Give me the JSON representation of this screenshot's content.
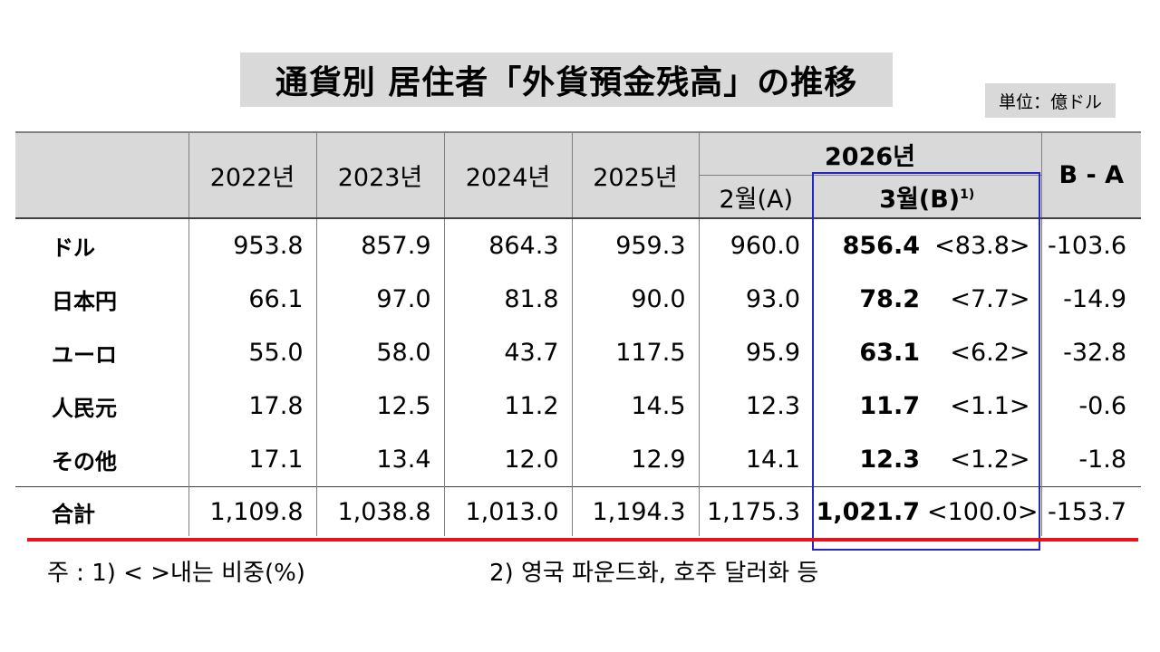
{
  "title": "通貨別 居住者「外貨預金残高」の推移",
  "unit": "単位：億ドル",
  "header": {
    "years": [
      "2022년",
      "2023년",
      "2024년",
      "2025년"
    ],
    "year_2026": "2026년",
    "feb": "2월(A)",
    "mar": "3월(B)",
    "mar_sup": "1)",
    "diff": "B - A"
  },
  "rows": [
    {
      "label": "ドル",
      "values": [
        "953.8",
        "857.9",
        "864.3",
        "959.3",
        "960.0"
      ],
      "mar": "856.4",
      "share": "<83.8>",
      "diff": "-103.6"
    },
    {
      "label": "日本円",
      "values": [
        "66.1",
        "97.0",
        "81.8",
        "90.0",
        "93.0"
      ],
      "mar": "78.2",
      "share": "<7.7>",
      "diff": "-14.9"
    },
    {
      "label": "ユーロ",
      "values": [
        "55.0",
        "58.0",
        "43.7",
        "117.5",
        "95.9"
      ],
      "mar": "63.1",
      "share": "<6.2>",
      "diff": "-32.8"
    },
    {
      "label": "人民元",
      "values": [
        "17.8",
        "12.5",
        "11.2",
        "14.5",
        "12.3"
      ],
      "mar": "11.7",
      "share": "<1.1>",
      "diff": "-0.6"
    },
    {
      "label": "その他",
      "values": [
        "17.1",
        "13.4",
        "12.0",
        "12.9",
        "14.1"
      ],
      "mar": "12.3",
      "share": "<1.2>",
      "diff": "-1.8"
    }
  ],
  "total": {
    "label": "合計",
    "values": [
      "1,109.8",
      "1,038.8",
      "1,013.0",
      "1,194.3",
      "1,175.3"
    ],
    "mar": "1,021.7",
    "share": "<100.0>",
    "diff": "-153.7"
  },
  "notes": {
    "note1": "주 : 1) <   >내는 비중(%)",
    "note2": "2) 영국 파운드화, 호주 달러화 등"
  },
  "colors": {
    "highlight_box": "#2424c8",
    "red_line": "#e8141c",
    "header_bg": "#d9d9d9"
  }
}
